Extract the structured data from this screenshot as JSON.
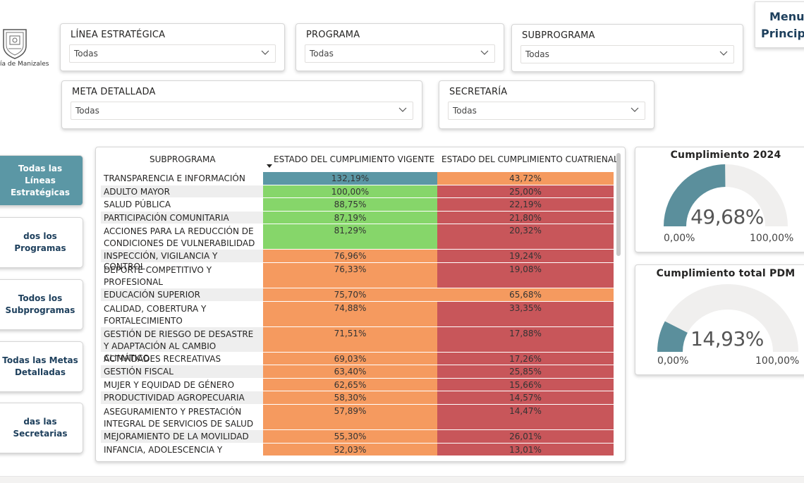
{
  "logo": {
    "text": "ía de Manizales"
  },
  "menu": {
    "line1": "Menu",
    "line2": "Principa"
  },
  "slicers": {
    "linea": {
      "title": "LÍNEA ESTRATÉGICA",
      "value": "Todas"
    },
    "programa": {
      "title": "PROGRAMA",
      "value": "Todas"
    },
    "subprograma": {
      "title": "SUBPROGRAMA",
      "value": "Todas"
    },
    "meta": {
      "title": "META DETALLADA",
      "value": "Todas"
    },
    "secretaria": {
      "title": "SECRETARÍA",
      "value": "Todas"
    }
  },
  "side_buttons": [
    {
      "label": "Todas las Líneas Estratégicas",
      "active": true
    },
    {
      "label": "dos los Programas",
      "active": false
    },
    {
      "label": "Todos los Subprogramas",
      "active": false
    },
    {
      "label": "Todas las Metas Detalladas",
      "active": false
    },
    {
      "label": "das las Secretarias",
      "active": false
    }
  ],
  "table": {
    "headers": [
      "SUBPROGRAMA",
      "ESTADO DEL CUMPLIMIENTO VIGENTE",
      "ESTADO DEL CUMPLIMIENTO CUATRIENAL"
    ],
    "rows": [
      {
        "name": "TRANSPARENCIA E INFORMACIÓN",
        "vigente": "132,19%",
        "cuatrienal": "43,72%",
        "v_color": "#5b97a5",
        "c_color": "#f59a5f",
        "lines": 1
      },
      {
        "name": "ADULTO MAYOR",
        "vigente": "100,00%",
        "cuatrienal": "25,00%",
        "v_color": "#86d66a",
        "c_color": "#c8565a",
        "lines": 1
      },
      {
        "name": "SALUD PÚBLICA",
        "vigente": "88,75%",
        "cuatrienal": "22,19%",
        "v_color": "#86d66a",
        "c_color": "#c8565a",
        "lines": 1
      },
      {
        "name": "PARTICIPACIÓN COMUNITARIA",
        "vigente": "87,19%",
        "cuatrienal": "21,80%",
        "v_color": "#86d66a",
        "c_color": "#c8565a",
        "lines": 1
      },
      {
        "name": "ACCIONES PARA LA REDUCCIÓN DE CONDICIONES DE VULNERABILIDAD",
        "vigente": "81,29%",
        "cuatrienal": "20,32%",
        "v_color": "#86d66a",
        "c_color": "#c8565a",
        "lines": 2
      },
      {
        "name": "INSPECCIÓN, VIGILANCIA Y CONTROL",
        "vigente": "76,96%",
        "cuatrienal": "19,24%",
        "v_color": "#f59a5f",
        "c_color": "#c8565a",
        "lines": 1
      },
      {
        "name": "DEPORTE COMPETITIVO Y PROFESIONAL",
        "vigente": "76,33%",
        "cuatrienal": "19,08%",
        "v_color": "#f59a5f",
        "c_color": "#c8565a",
        "lines": 2
      },
      {
        "name": "EDUCACIÓN SUPERIOR",
        "vigente": "75,70%",
        "cuatrienal": "65,68%",
        "v_color": "#f59a5f",
        "c_color": "#f59a5f",
        "lines": 1
      },
      {
        "name": "CALIDAD, COBERTURA Y FORTALECIMIENTO",
        "vigente": "74,88%",
        "cuatrienal": "33,35%",
        "v_color": "#f59a5f",
        "c_color": "#c8565a",
        "lines": 2
      },
      {
        "name": "GESTIÓN DE RIESGO DE DESASTRE Y ADAPTACIÓN AL CAMBIO CLIMÁTICO",
        "vigente": "71,51%",
        "cuatrienal": "17,88%",
        "v_color": "#f59a5f",
        "c_color": "#c8565a",
        "lines": 2
      },
      {
        "name": "ACTIVIDADES RECREATIVAS",
        "vigente": "69,03%",
        "cuatrienal": "17,26%",
        "v_color": "#f59a5f",
        "c_color": "#c8565a",
        "lines": 1
      },
      {
        "name": "GESTIÓN FISCAL",
        "vigente": "63,40%",
        "cuatrienal": "25,85%",
        "v_color": "#f59a5f",
        "c_color": "#c8565a",
        "lines": 1
      },
      {
        "name": "MUJER Y EQUIDAD DE GÉNERO",
        "vigente": "62,65%",
        "cuatrienal": "15,66%",
        "v_color": "#f59a5f",
        "c_color": "#c8565a",
        "lines": 1
      },
      {
        "name": "PRODUCTIVIDAD AGROPECUARIA",
        "vigente": "58,30%",
        "cuatrienal": "14,57%",
        "v_color": "#f59a5f",
        "c_color": "#c8565a",
        "lines": 1
      },
      {
        "name": "ASEGURAMIENTO Y PRESTACIÓN INTEGRAL DE SERVICIOS DE SALUD",
        "vigente": "57,89%",
        "cuatrienal": "14,47%",
        "v_color": "#f59a5f",
        "c_color": "#c8565a",
        "lines": 2
      },
      {
        "name": "MEJORAMIENTO DE LA MOVILIDAD",
        "vigente": "55,30%",
        "cuatrienal": "26,01%",
        "v_color": "#f59a5f",
        "c_color": "#c8565a",
        "lines": 1
      },
      {
        "name": "INFANCIA, ADOLESCENCIA Y",
        "vigente": "52,03%",
        "cuatrienal": "13,01%",
        "v_color": "#f59a5f",
        "c_color": "#c8565a",
        "lines": 1
      }
    ]
  },
  "gauges": [
    {
      "title": "Cumplimiento 2024",
      "value": "49,68%",
      "fraction": 0.4968,
      "min": "0,00%",
      "max": "100,00%",
      "color": "#5b8f9c"
    },
    {
      "title": "Cumplimiento total PDM",
      "value": "14,93%",
      "fraction": 0.1493,
      "min": "0,00%",
      "max": "100,00%",
      "color": "#5b8f9c"
    }
  ],
  "colors": {
    "teal": "#5b97a5",
    "green": "#86d66a",
    "orange": "#f59a5f",
    "red": "#c8565a",
    "navy": "#1d3f5c"
  }
}
